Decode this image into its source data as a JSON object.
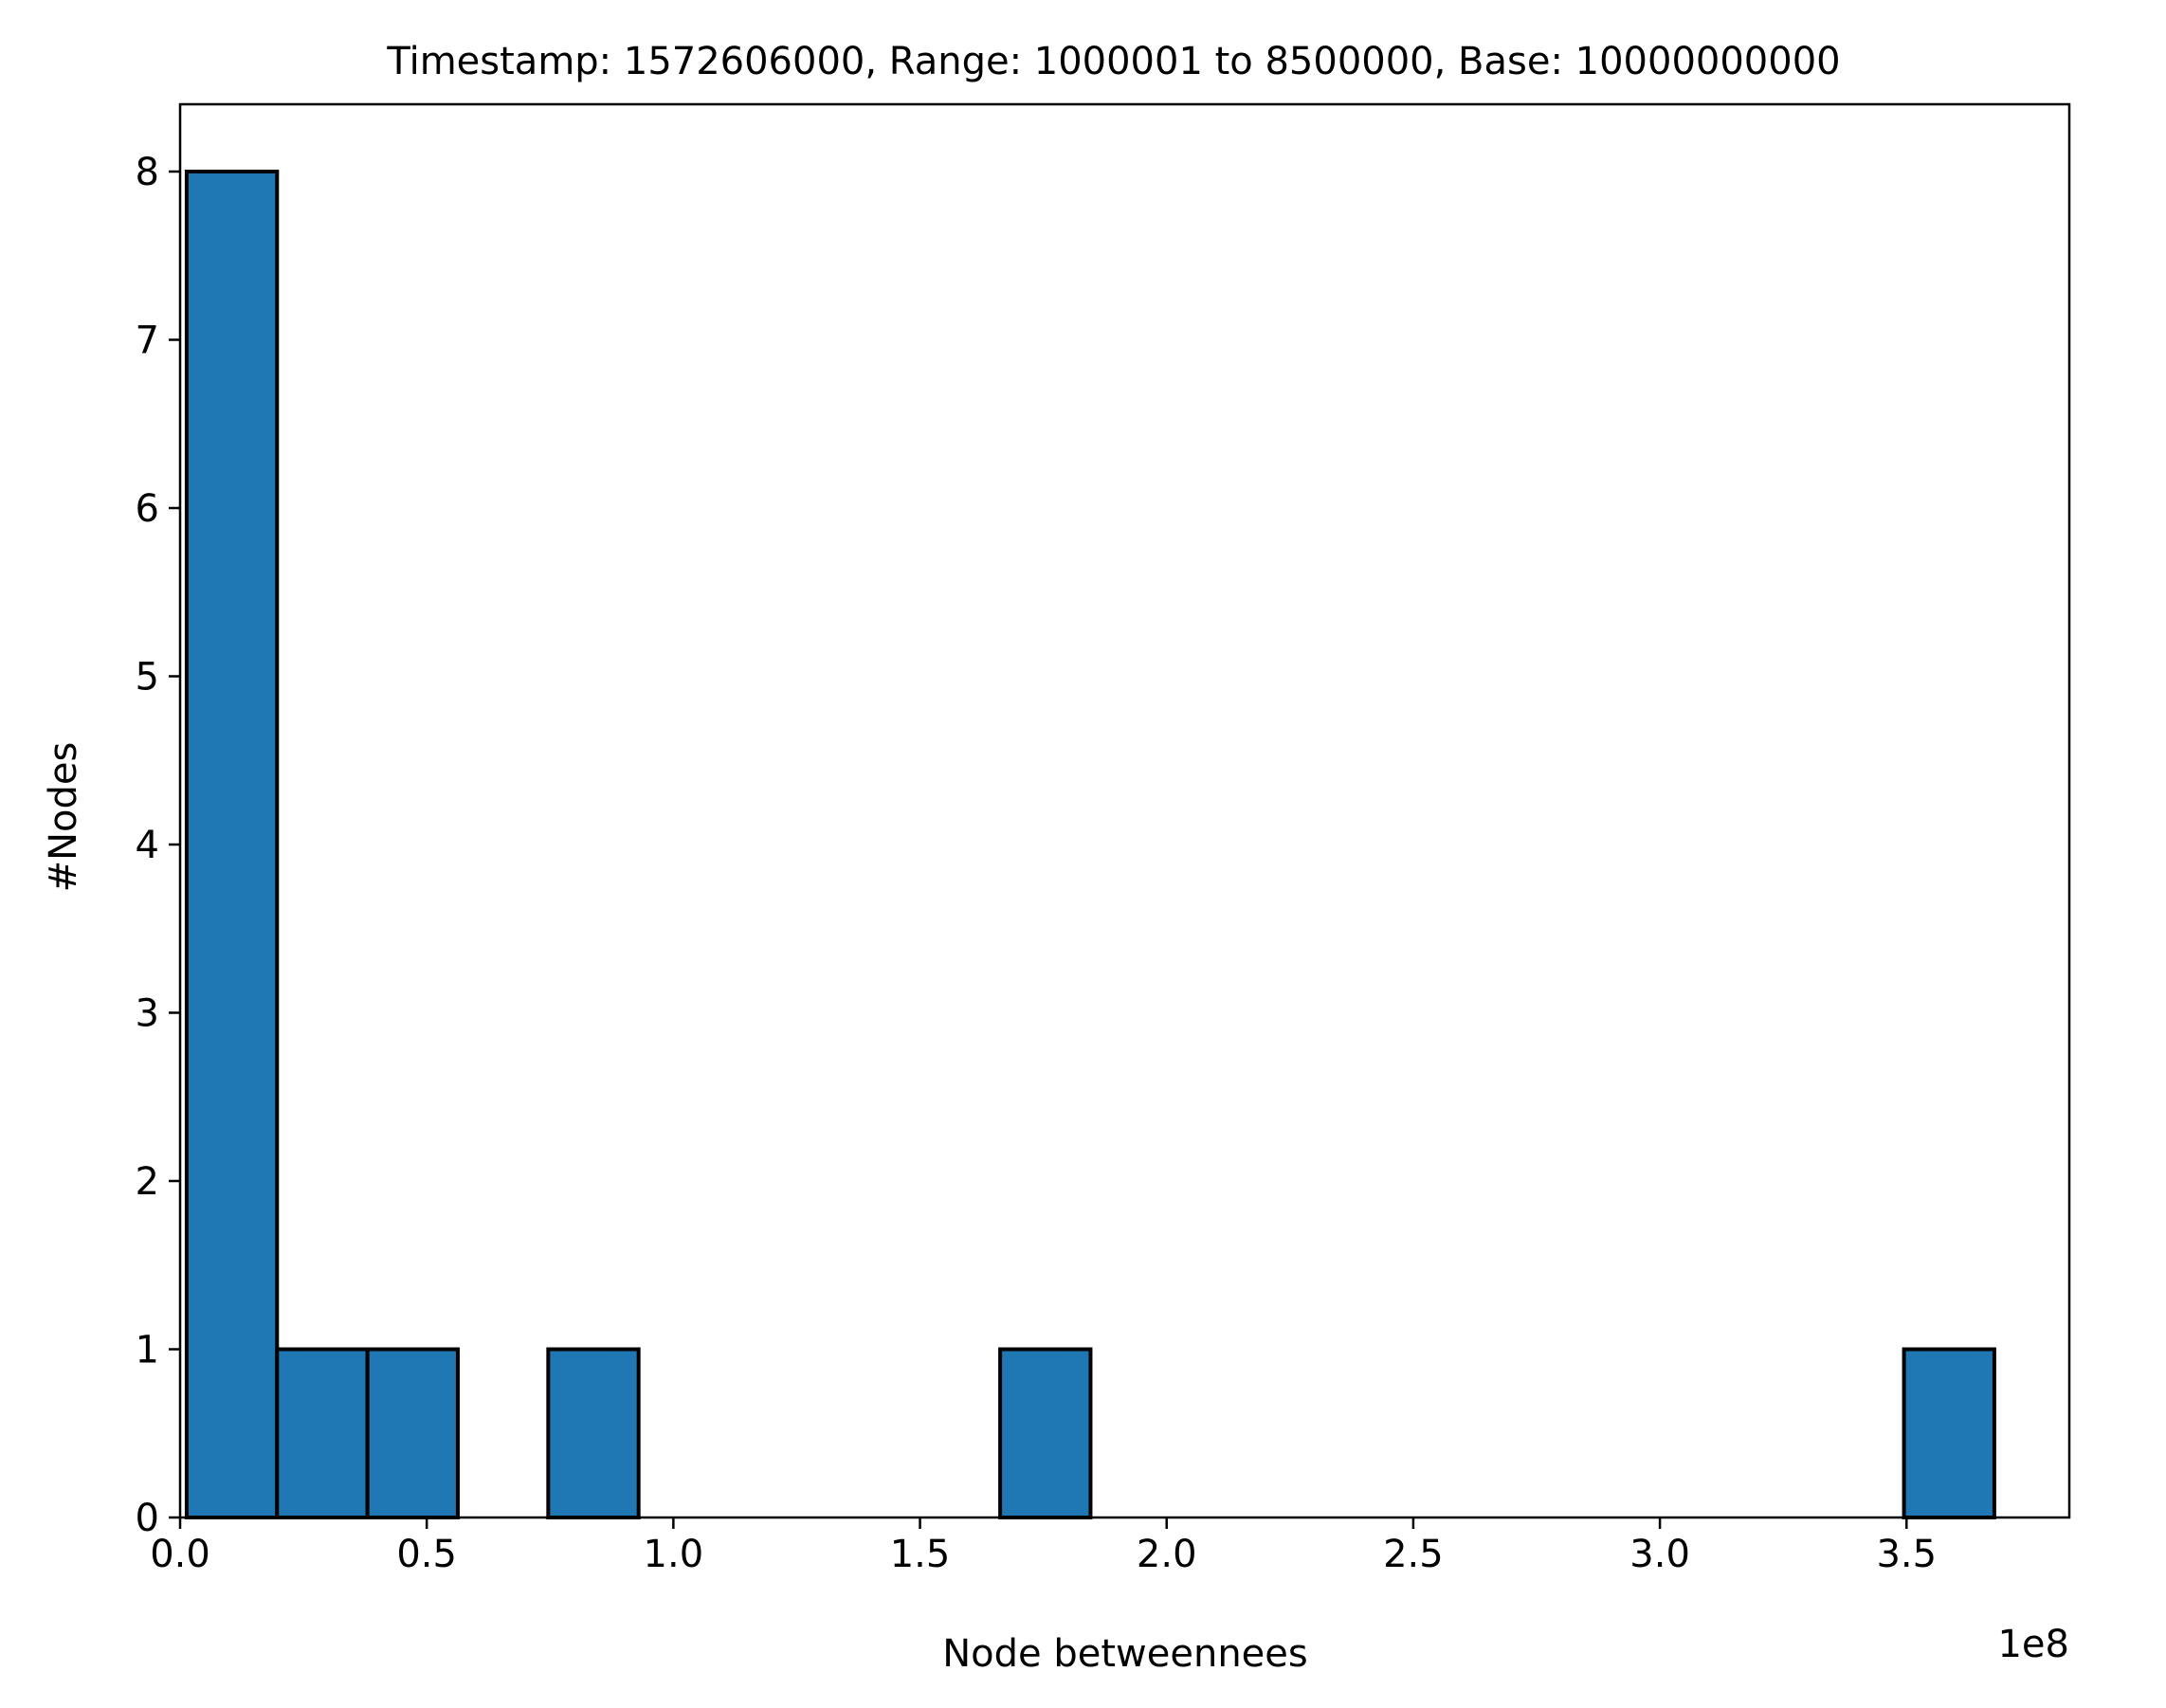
{
  "chart_data": {
    "type": "bar",
    "title": "Timestamp: 1572606000, Range: 1000001 to 8500000, Base: 10000000000",
    "xlabel": "Node betweennees",
    "ylabel": "#Nodes",
    "x_offset_text": "1e8",
    "xlim": [
      0,
      3.83
    ],
    "ylim": [
      0,
      8.4
    ],
    "x_unit_multiplier": 100000000,
    "bin_edges": [
      0.0133,
      0.1966,
      0.3798,
      0.563,
      0.7463,
      0.9295,
      1.1128,
      1.296,
      1.4792,
      1.6625,
      1.8457,
      2.0289,
      2.2122,
      2.3954,
      2.5786,
      2.7619,
      2.9451,
      3.1283,
      3.3116,
      3.4948,
      3.678
    ],
    "values": [
      8,
      1,
      1,
      0,
      1,
      0,
      0,
      0,
      0,
      1,
      0,
      0,
      0,
      0,
      0,
      0,
      0,
      0,
      0,
      1
    ],
    "x_ticks": [
      {
        "value": 0.0,
        "label": "0.0"
      },
      {
        "value": 0.5,
        "label": "0.5"
      },
      {
        "value": 1.0,
        "label": "1.0"
      },
      {
        "value": 1.5,
        "label": "1.5"
      },
      {
        "value": 2.0,
        "label": "2.0"
      },
      {
        "value": 2.5,
        "label": "2.5"
      },
      {
        "value": 3.0,
        "label": "3.0"
      },
      {
        "value": 3.5,
        "label": "3.5"
      }
    ],
    "y_ticks": [
      {
        "value": 0,
        "label": "0"
      },
      {
        "value": 1,
        "label": "1"
      },
      {
        "value": 2,
        "label": "2"
      },
      {
        "value": 3,
        "label": "3"
      },
      {
        "value": 4,
        "label": "4"
      },
      {
        "value": 5,
        "label": "5"
      },
      {
        "value": 6,
        "label": "6"
      },
      {
        "value": 7,
        "label": "7"
      },
      {
        "value": 8,
        "label": "8"
      }
    ],
    "bar_color": "#1f77b4",
    "edge_color": "#000000",
    "grid": false
  }
}
